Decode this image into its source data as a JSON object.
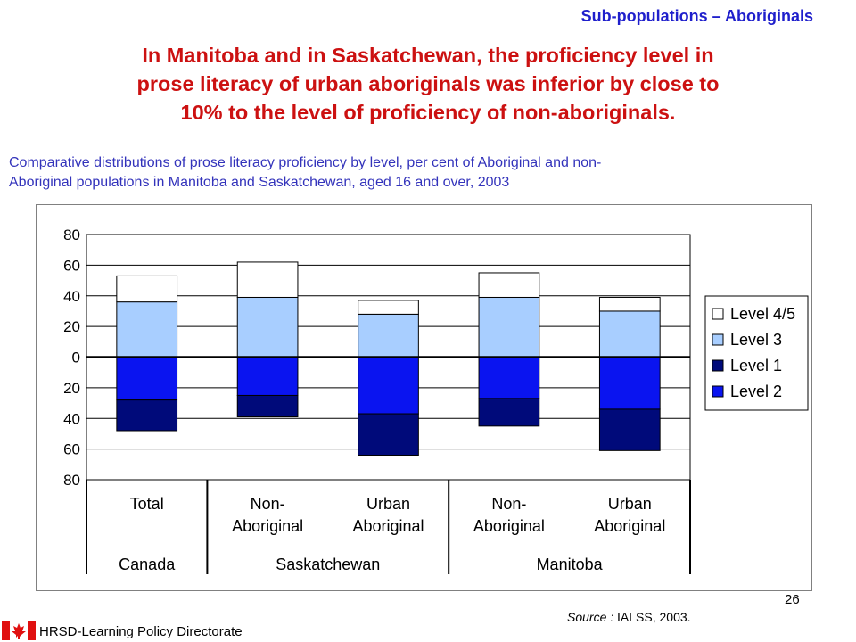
{
  "header": {
    "section_title": "Sub-populations – Aboriginals",
    "headline_lines": [
      "In Manitoba and in Saskatchewan, the proficiency level in",
      "prose literacy of urban aboriginals was inferior by close to",
      "10% to the level of proficiency of non-aboriginals."
    ],
    "subtitle_lines": [
      "Comparative distributions of prose literacy proficiency by level, per cent of Aboriginal and non-",
      "Aboriginal populations in Manitoba and Saskatchewan, aged 16 and over, 2003"
    ]
  },
  "chart_data": {
    "type": "bar",
    "stacked": "diverging",
    "categories": [
      [
        "Total"
      ],
      [
        "Non-",
        "Aboriginal"
      ],
      [
        "Urban",
        "Aboriginal"
      ],
      [
        "Non-",
        "Aboriginal"
      ],
      [
        "Urban",
        "Aboriginal"
      ]
    ],
    "groups": [
      {
        "label": "Canada",
        "categories": [
          0
        ]
      },
      {
        "label": "Saskatchewan",
        "categories": [
          1,
          2
        ]
      },
      {
        "label": "Manitoba",
        "categories": [
          3,
          4
        ]
      }
    ],
    "series": [
      {
        "name": "Level 2",
        "direction": "down",
        "values": [
          28,
          25,
          37,
          27,
          34
        ],
        "color": "#0a14f0"
      },
      {
        "name": "Level 1",
        "direction": "down",
        "values": [
          20,
          14,
          27,
          18,
          27
        ],
        "color": "#000a7a"
      },
      {
        "name": "Level 3",
        "direction": "up",
        "values": [
          36,
          39,
          28,
          39,
          30
        ],
        "color": "#a8ceff"
      },
      {
        "name": "Level 4/5",
        "direction": "up",
        "values": [
          17,
          23,
          9,
          16,
          9
        ],
        "color": "#ffffff"
      }
    ],
    "legend_order": [
      "Level 4/5",
      "Level 3",
      "Level 1",
      "Level 2"
    ],
    "y_ticks": [
      80,
      60,
      40,
      20,
      0,
      20,
      40,
      60,
      80
    ],
    "ylim": [
      -80,
      80
    ],
    "grid": true,
    "legend_position": "right"
  },
  "footer": {
    "page_number": "26",
    "source_label": "Source :",
    "source_value": "IALSS,  2003.",
    "organization": "HRSD-Learning Policy Directorate"
  }
}
